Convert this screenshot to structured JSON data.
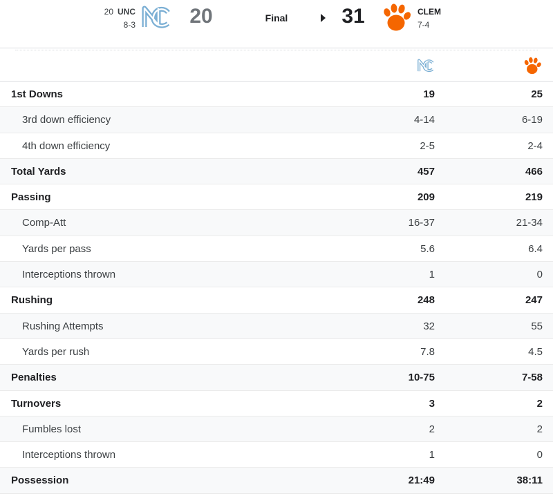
{
  "away": {
    "rank": "20",
    "abbr": "UNC",
    "record": "8-3",
    "score": "20",
    "color": "#7BAFD4"
  },
  "home": {
    "abbr": "CLEM",
    "record": "7-4",
    "score": "31",
    "color": "#F56600"
  },
  "game": {
    "status": "Final"
  },
  "icons": {
    "away_logo": "unc-tar-heels-logo-icon",
    "home_logo": "clemson-tiger-paw-logo-icon",
    "winner_indicator": "triangle-right-icon"
  },
  "stats": [
    {
      "label": "1st Downs",
      "away": "19",
      "home": "25",
      "level": "main"
    },
    {
      "label": "3rd down efficiency",
      "away": "4-14",
      "home": "6-19",
      "level": "sub"
    },
    {
      "label": "4th down efficiency",
      "away": "2-5",
      "home": "2-4",
      "level": "sub"
    },
    {
      "label": "Total Yards",
      "away": "457",
      "home": "466",
      "level": "main"
    },
    {
      "label": "Passing",
      "away": "209",
      "home": "219",
      "level": "main"
    },
    {
      "label": "Comp-Att",
      "away": "16-37",
      "home": "21-34",
      "level": "sub"
    },
    {
      "label": "Yards per pass",
      "away": "5.6",
      "home": "6.4",
      "level": "sub"
    },
    {
      "label": "Interceptions thrown",
      "away": "1",
      "home": "0",
      "level": "sub"
    },
    {
      "label": "Rushing",
      "away": "248",
      "home": "247",
      "level": "main"
    },
    {
      "label": "Rushing Attempts",
      "away": "32",
      "home": "55",
      "level": "sub"
    },
    {
      "label": "Yards per rush",
      "away": "7.8",
      "home": "4.5",
      "level": "sub"
    },
    {
      "label": "Penalties",
      "away": "10-75",
      "home": "7-58",
      "level": "main"
    },
    {
      "label": "Turnovers",
      "away": "3",
      "home": "2",
      "level": "main"
    },
    {
      "label": "Fumbles lost",
      "away": "2",
      "home": "2",
      "level": "sub"
    },
    {
      "label": "Interceptions thrown",
      "away": "1",
      "home": "0",
      "level": "sub"
    },
    {
      "label": "Possession",
      "away": "21:49",
      "home": "38:11",
      "level": "main"
    }
  ]
}
